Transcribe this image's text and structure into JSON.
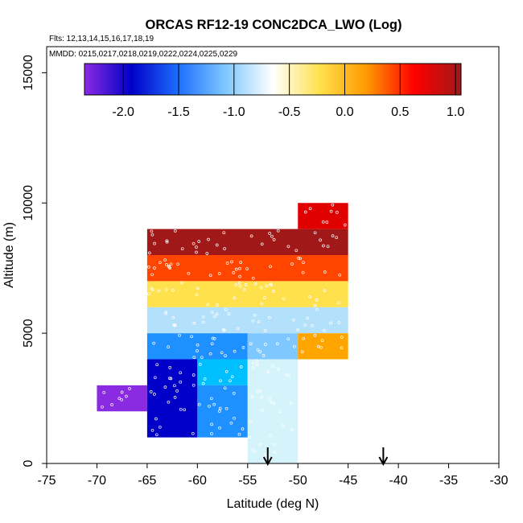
{
  "chart_data": {
    "type": "heatmap",
    "title": "ORCAS RF12-19 CONC2DCA_LWO (Log)",
    "subtitle_flights": "Flts: 12,13,14,15,16,17,18,19",
    "subtitle_dates": "MMDD: 0215,0217,0218,0219,0222,0224,0225,0229",
    "xlabel": "Latitude (deg N)",
    "ylabel": "Altitude (m)",
    "xlim": [
      -75,
      -30
    ],
    "ylim": [
      0,
      16000
    ],
    "xticks": [
      -75,
      -70,
      -65,
      -60,
      -55,
      -50,
      -45,
      -40,
      -35,
      -30
    ],
    "xtick_labels": [
      "-75",
      "-70",
      "-65",
      "-60",
      "-55",
      "-50",
      "-45",
      "-40",
      "-35",
      "-30"
    ],
    "yticks": [
      0,
      5000,
      10000,
      15000
    ],
    "ytick_labels": [
      "0",
      "5000",
      "10000",
      "15000"
    ],
    "colorbar": {
      "range": [
        -2.35,
        1.05
      ],
      "ticks": [
        -2.0,
        -1.5,
        -1.0,
        -0.5,
        0.0,
        0.5,
        1.0
      ],
      "tick_labels": [
        "-2.0",
        "-1.5",
        "-1.0",
        "-0.5",
        "0.0",
        "0.5",
        "1.0"
      ],
      "stops": [
        "#8a2be2",
        "#0000c8",
        "#1e6fff",
        "#7fc8ff",
        "#ffffff",
        "#ffe14d",
        "#ff9900",
        "#ff0000",
        "#a01818"
      ]
    },
    "cells": [
      {
        "lon0": -70,
        "lon1": -65,
        "alt0": 2000,
        "alt1": 3000,
        "color": "#8a2be2"
      },
      {
        "lon0": -65,
        "lon1": -60,
        "alt0": 1000,
        "alt1": 4000,
        "color": "#0000c8"
      },
      {
        "lon0": -60,
        "lon1": -55,
        "alt0": 1000,
        "alt1": 3000,
        "color": "#1e90ff"
      },
      {
        "lon0": -60,
        "lon1": -55,
        "alt0": 3000,
        "alt1": 4000,
        "color": "#00bfff"
      },
      {
        "lon0": -55,
        "lon1": -50,
        "alt0": 0,
        "alt1": 4000,
        "color": "#d4f3fa"
      },
      {
        "lon0": -65,
        "lon1": -55,
        "alt0": 4000,
        "alt1": 5000,
        "color": "#1e90ff"
      },
      {
        "lon0": -55,
        "lon1": -50,
        "alt0": 4000,
        "alt1": 5000,
        "color": "#7ec8ff"
      },
      {
        "lon0": -50,
        "lon1": -45,
        "alt0": 4000,
        "alt1": 5000,
        "color": "#ffa500"
      },
      {
        "lon0": -65,
        "lon1": -45,
        "alt0": 5000,
        "alt1": 6000,
        "color": "#b3e0fb"
      },
      {
        "lon0": -65,
        "lon1": -45,
        "alt0": 6000,
        "alt1": 7000,
        "color": "#ffe14d"
      },
      {
        "lon0": -65,
        "lon1": -45,
        "alt0": 7000,
        "alt1": 8000,
        "color": "#ff4500"
      },
      {
        "lon0": -65,
        "lon1": -45,
        "alt0": 8000,
        "alt1": 9000,
        "color": "#a01818"
      },
      {
        "lon0": -50,
        "lon1": -45,
        "alt0": 9000,
        "alt1": 10000,
        "color": "#e00000"
      }
    ],
    "arrows_latitude": [
      -53,
      -41.5
    ]
  }
}
